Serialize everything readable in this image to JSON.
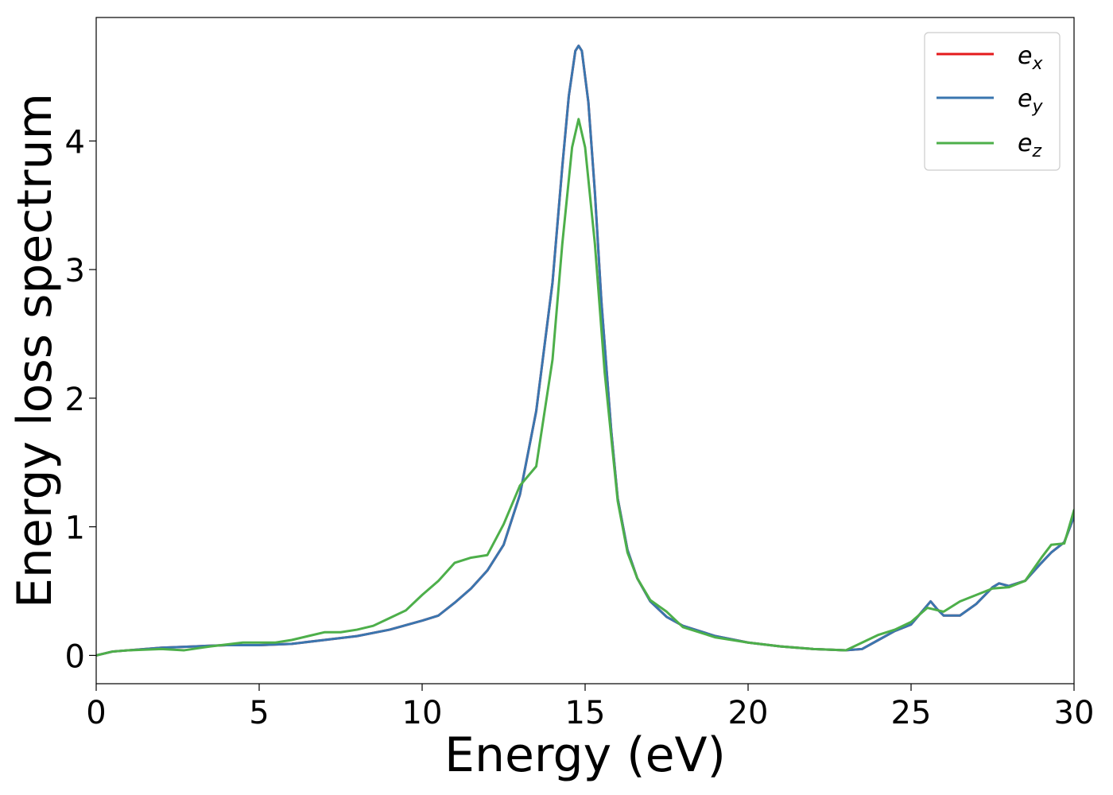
{
  "chart_data": {
    "type": "line",
    "title": "",
    "xlabel": "Energy (eV)",
    "ylabel": "Energy loss spectrum",
    "xlim": [
      0,
      30
    ],
    "ylim": [
      -0.22,
      4.96
    ],
    "xticks": [
      0,
      5,
      10,
      15,
      20,
      25,
      30
    ],
    "xtick_labels": [
      "0",
      "5",
      "10",
      "15",
      "20",
      "25",
      "30"
    ],
    "yticks": [
      0,
      1,
      2,
      3,
      4
    ],
    "ytick_labels": [
      "0",
      "1",
      "2",
      "3",
      "4"
    ],
    "grid": false,
    "legend_position": "top-right",
    "series": [
      {
        "name": "e_x",
        "legend_base": "e",
        "legend_sub": "x",
        "color": "#e41a1c",
        "points": [
          [
            0,
            0
          ],
          [
            0.5,
            0.03
          ],
          [
            1,
            0.04
          ],
          [
            2,
            0.06
          ],
          [
            3,
            0.07
          ],
          [
            4,
            0.08
          ],
          [
            5,
            0.08
          ],
          [
            6,
            0.09
          ],
          [
            7,
            0.12
          ],
          [
            8,
            0.15
          ],
          [
            9,
            0.2
          ],
          [
            10,
            0.27
          ],
          [
            10.5,
            0.31
          ],
          [
            11,
            0.41
          ],
          [
            11.5,
            0.52
          ],
          [
            12,
            0.66
          ],
          [
            12.5,
            0.86
          ],
          [
            13,
            1.25
          ],
          [
            13.5,
            1.9
          ],
          [
            14,
            2.9
          ],
          [
            14.3,
            3.8
          ],
          [
            14.5,
            4.35
          ],
          [
            14.7,
            4.7
          ],
          [
            14.8,
            4.74
          ],
          [
            14.9,
            4.7
          ],
          [
            15.1,
            4.3
          ],
          [
            15.3,
            3.6
          ],
          [
            15.5,
            2.75
          ],
          [
            15.8,
            1.75
          ],
          [
            16,
            1.22
          ],
          [
            16.3,
            0.82
          ],
          [
            16.6,
            0.6
          ],
          [
            17,
            0.42
          ],
          [
            17.5,
            0.3
          ],
          [
            18,
            0.23
          ],
          [
            19,
            0.15
          ],
          [
            20,
            0.1
          ],
          [
            21,
            0.07
          ],
          [
            22,
            0.05
          ],
          [
            23,
            0.04
          ],
          [
            23.5,
            0.05
          ],
          [
            24,
            0.12
          ],
          [
            24.5,
            0.19
          ],
          [
            25,
            0.24
          ],
          [
            25.3,
            0.33
          ],
          [
            25.6,
            0.42
          ],
          [
            25.8,
            0.36
          ],
          [
            26,
            0.31
          ],
          [
            26.5,
            0.31
          ],
          [
            27,
            0.4
          ],
          [
            27.5,
            0.53
          ],
          [
            27.7,
            0.56
          ],
          [
            28,
            0.54
          ],
          [
            28.5,
            0.58
          ],
          [
            29,
            0.72
          ],
          [
            29.3,
            0.8
          ],
          [
            29.7,
            0.88
          ],
          [
            30,
            1.08
          ]
        ]
      },
      {
        "name": "e_y",
        "legend_base": "e",
        "legend_sub": "y",
        "color": "#3a76af",
        "points": [
          [
            0,
            0
          ],
          [
            0.5,
            0.03
          ],
          [
            1,
            0.04
          ],
          [
            2,
            0.06
          ],
          [
            3,
            0.07
          ],
          [
            4,
            0.08
          ],
          [
            5,
            0.08
          ],
          [
            6,
            0.09
          ],
          [
            7,
            0.12
          ],
          [
            8,
            0.15
          ],
          [
            9,
            0.2
          ],
          [
            10,
            0.27
          ],
          [
            10.5,
            0.31
          ],
          [
            11,
            0.41
          ],
          [
            11.5,
            0.52
          ],
          [
            12,
            0.66
          ],
          [
            12.5,
            0.86
          ],
          [
            13,
            1.25
          ],
          [
            13.5,
            1.9
          ],
          [
            14,
            2.9
          ],
          [
            14.3,
            3.8
          ],
          [
            14.5,
            4.35
          ],
          [
            14.7,
            4.7
          ],
          [
            14.8,
            4.74
          ],
          [
            14.9,
            4.7
          ],
          [
            15.1,
            4.3
          ],
          [
            15.3,
            3.6
          ],
          [
            15.5,
            2.75
          ],
          [
            15.8,
            1.75
          ],
          [
            16,
            1.22
          ],
          [
            16.3,
            0.82
          ],
          [
            16.6,
            0.6
          ],
          [
            17,
            0.42
          ],
          [
            17.5,
            0.3
          ],
          [
            18,
            0.23
          ],
          [
            19,
            0.15
          ],
          [
            20,
            0.1
          ],
          [
            21,
            0.07
          ],
          [
            22,
            0.05
          ],
          [
            23,
            0.04
          ],
          [
            23.5,
            0.05
          ],
          [
            24,
            0.12
          ],
          [
            24.5,
            0.19
          ],
          [
            25,
            0.24
          ],
          [
            25.3,
            0.33
          ],
          [
            25.6,
            0.42
          ],
          [
            25.8,
            0.36
          ],
          [
            26,
            0.31
          ],
          [
            26.5,
            0.31
          ],
          [
            27,
            0.4
          ],
          [
            27.5,
            0.53
          ],
          [
            27.7,
            0.56
          ],
          [
            28,
            0.54
          ],
          [
            28.5,
            0.58
          ],
          [
            29,
            0.72
          ],
          [
            29.3,
            0.8
          ],
          [
            29.7,
            0.88
          ],
          [
            30,
            1.08
          ]
        ]
      },
      {
        "name": "e_z",
        "legend_base": "e",
        "legend_sub": "z",
        "color": "#4daf4a",
        "points": [
          [
            0,
            0
          ],
          [
            0.5,
            0.03
          ],
          [
            1,
            0.04
          ],
          [
            2,
            0.05
          ],
          [
            2.7,
            0.04
          ],
          [
            3.5,
            0.07
          ],
          [
            4.5,
            0.1
          ],
          [
            5.5,
            0.1
          ],
          [
            6,
            0.12
          ],
          [
            6.5,
            0.15
          ],
          [
            7,
            0.18
          ],
          [
            7.5,
            0.18
          ],
          [
            8,
            0.2
          ],
          [
            8.5,
            0.23
          ],
          [
            9,
            0.29
          ],
          [
            9.5,
            0.35
          ],
          [
            10,
            0.47
          ],
          [
            10.5,
            0.58
          ],
          [
            11,
            0.72
          ],
          [
            11.5,
            0.76
          ],
          [
            12,
            0.78
          ],
          [
            12.5,
            1.02
          ],
          [
            13,
            1.32
          ],
          [
            13.5,
            1.47
          ],
          [
            14,
            2.3
          ],
          [
            14.3,
            3.2
          ],
          [
            14.6,
            3.95
          ],
          [
            14.8,
            4.17
          ],
          [
            15,
            3.95
          ],
          [
            15.3,
            3.2
          ],
          [
            15.6,
            2.2
          ],
          [
            16,
            1.2
          ],
          [
            16.3,
            0.8
          ],
          [
            16.6,
            0.6
          ],
          [
            17,
            0.43
          ],
          [
            17.5,
            0.34
          ],
          [
            18,
            0.22
          ],
          [
            19,
            0.14
          ],
          [
            20,
            0.1
          ],
          [
            21,
            0.07
          ],
          [
            22,
            0.05
          ],
          [
            23,
            0.04
          ],
          [
            23.5,
            0.1
          ],
          [
            24,
            0.16
          ],
          [
            24.5,
            0.2
          ],
          [
            25,
            0.26
          ],
          [
            25.5,
            0.37
          ],
          [
            26,
            0.34
          ],
          [
            26.5,
            0.42
          ],
          [
            27,
            0.47
          ],
          [
            27.5,
            0.52
          ],
          [
            28,
            0.53
          ],
          [
            28.5,
            0.58
          ],
          [
            29,
            0.76
          ],
          [
            29.3,
            0.86
          ],
          [
            29.7,
            0.87
          ],
          [
            30,
            1.13
          ]
        ]
      }
    ]
  }
}
